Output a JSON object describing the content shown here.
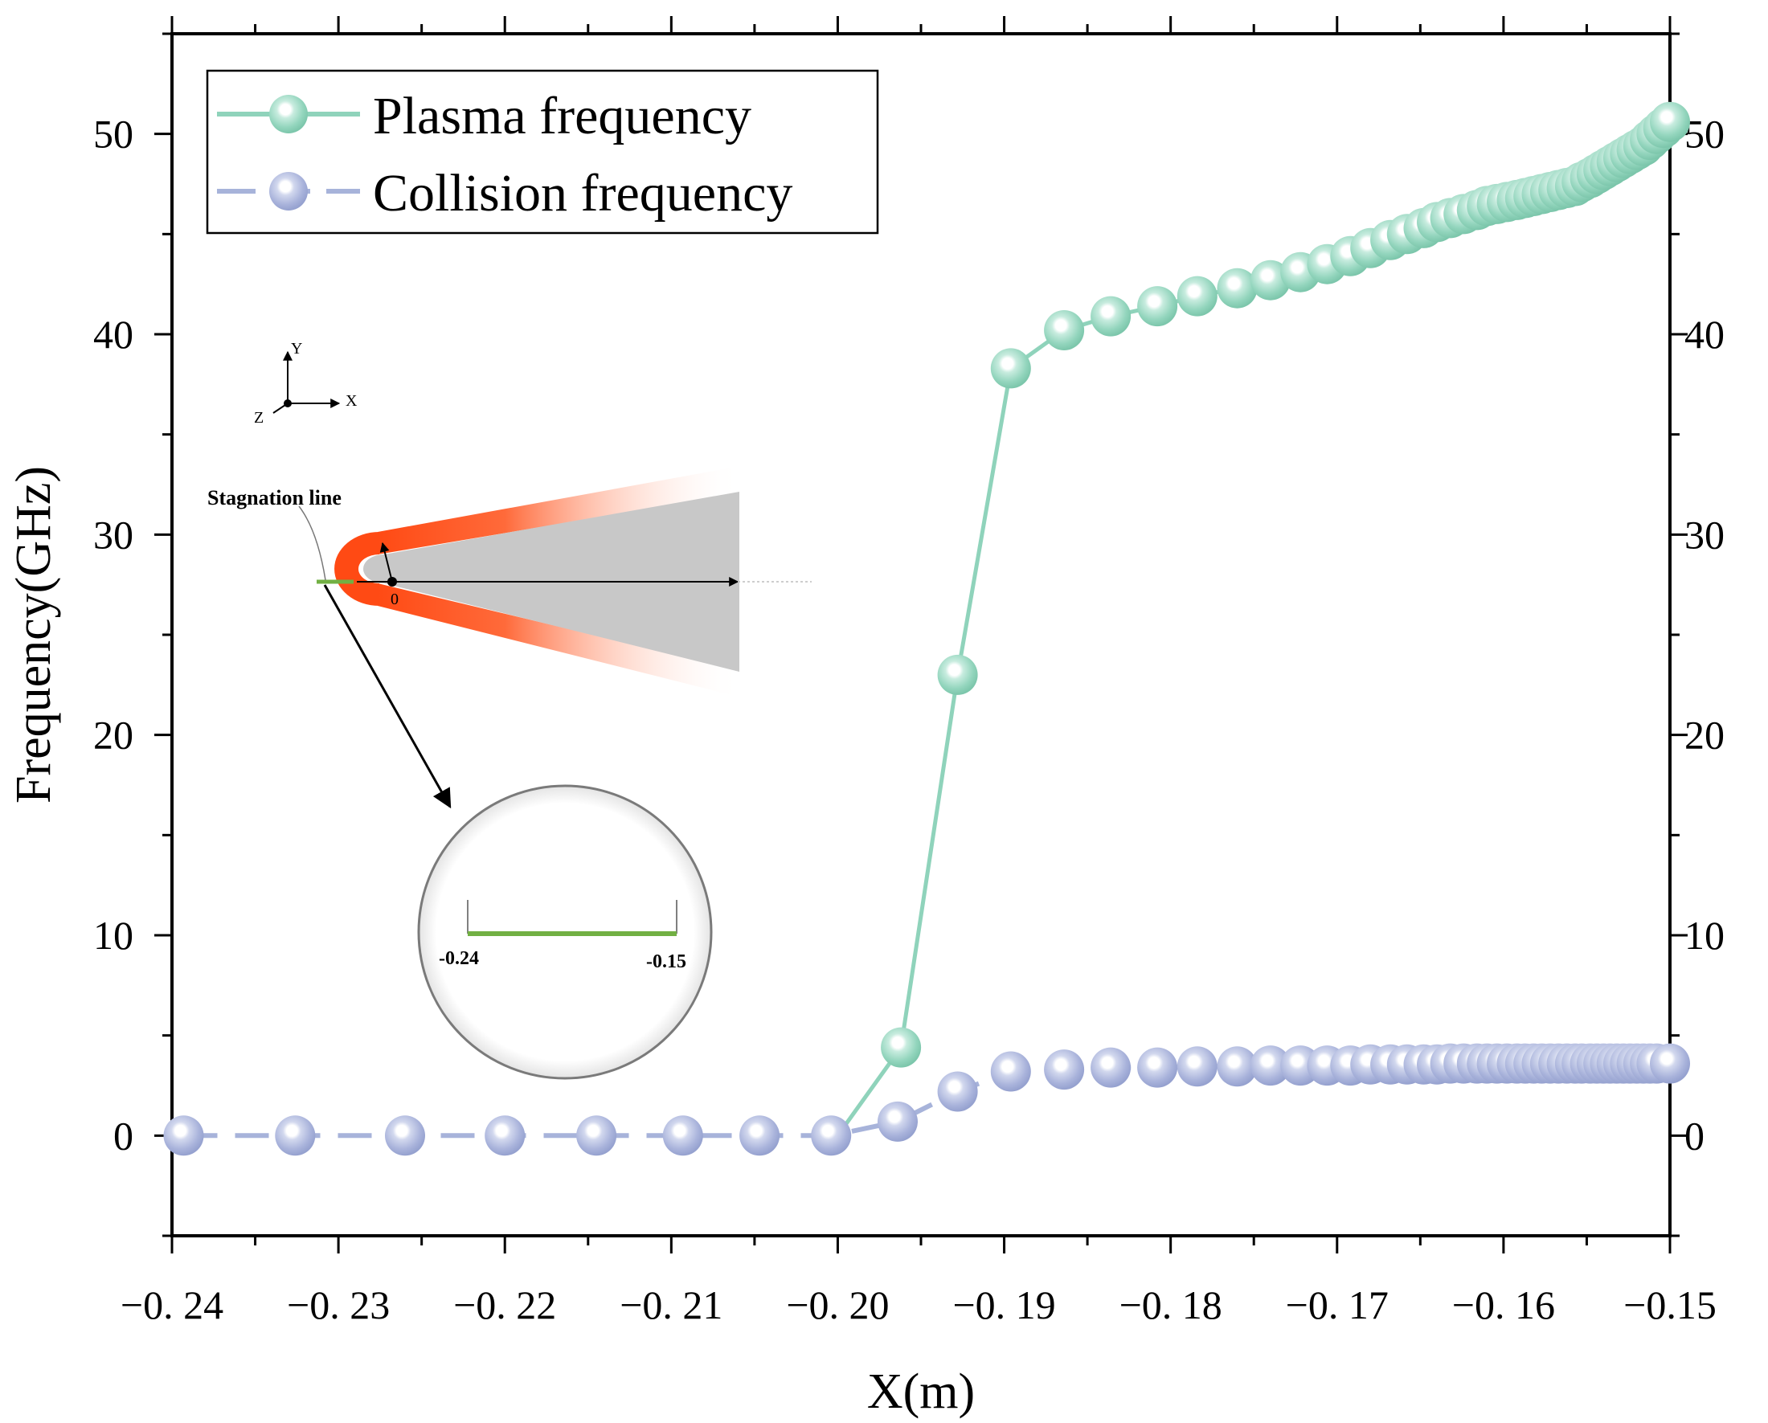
{
  "chart_data": {
    "type": "line",
    "title": "",
    "xlabel": "X(m)",
    "ylabel": "Frequency(GHz)",
    "xlim": [
      -0.24,
      -0.15
    ],
    "ylim": [
      -5,
      55
    ],
    "x_ticks": [
      -0.24,
      -0.23,
      -0.22,
      -0.21,
      -0.2,
      -0.19,
      -0.18,
      -0.17,
      -0.16,
      -0.15
    ],
    "x_tick_labels": [
      "−0. 24",
      "−0. 23",
      "−0. 22",
      "−0. 21",
      "−0. 20",
      "−0. 19",
      "−0. 18",
      "−0. 17",
      "−0. 16",
      "−0.15"
    ],
    "y_ticks": [
      0,
      10,
      20,
      30,
      40,
      50
    ],
    "y_tick_labels": [
      "0",
      "10",
      "20",
      "30",
      "40",
      "50"
    ],
    "grid": false,
    "legend_position": "top-left",
    "series": [
      {
        "name": "Plasma frequency",
        "color": "#8fd3bb",
        "x": [
          -0.2,
          -0.1962,
          -0.1928,
          -0.1896,
          -0.1864,
          -0.1836,
          -0.1808,
          -0.1784,
          -0.176,
          -0.174,
          -0.1722,
          -0.1706,
          -0.1692,
          -0.168,
          -0.1668,
          -0.1658,
          -0.1648,
          -0.164,
          -0.1632,
          -0.1624,
          -0.1616,
          -0.161,
          -0.1604,
          -0.1598,
          -0.1592,
          -0.1587,
          -0.1582,
          -0.1577,
          -0.1572,
          -0.1567,
          -0.1562,
          -0.1557,
          -0.1553,
          -0.1548,
          -0.1544,
          -0.154,
          -0.1536,
          -0.1532,
          -0.1528,
          -0.1524,
          -0.152,
          -0.1516,
          -0.1512,
          -0.1508,
          -0.1504,
          -0.15
        ],
        "values": [
          0.0,
          4.4,
          23.0,
          38.3,
          40.2,
          40.9,
          41.4,
          41.9,
          42.3,
          42.7,
          43.1,
          43.5,
          43.9,
          44.3,
          44.7,
          45.0,
          45.3,
          45.6,
          45.8,
          46.0,
          46.2,
          46.4,
          46.5,
          46.6,
          46.7,
          46.8,
          46.9,
          47.0,
          47.1,
          47.2,
          47.3,
          47.4,
          47.6,
          47.8,
          48.0,
          48.2,
          48.4,
          48.6,
          48.8,
          49.0,
          49.2,
          49.4,
          49.7,
          50.0,
          50.3,
          50.6
        ]
      },
      {
        "name": "Collision frequency",
        "color": "#a7b3da",
        "x": [
          -0.2393,
          -0.2326,
          -0.226,
          -0.22,
          -0.2145,
          -0.2093,
          -0.2047,
          -0.2004,
          -0.1964,
          -0.1928,
          -0.1896,
          -0.1864,
          -0.1836,
          -0.1808,
          -0.1784,
          -0.176,
          -0.174,
          -0.1722,
          -0.1706,
          -0.1692,
          -0.168,
          -0.1668,
          -0.1658,
          -0.1648,
          -0.164,
          -0.1632,
          -0.1624,
          -0.1616,
          -0.161,
          -0.1604,
          -0.1598,
          -0.1592,
          -0.1587,
          -0.1582,
          -0.1577,
          -0.1572,
          -0.1567,
          -0.1562,
          -0.1557,
          -0.1553,
          -0.1548,
          -0.1544,
          -0.154,
          -0.1536,
          -0.1532,
          -0.1528,
          -0.1524,
          -0.152,
          -0.1516,
          -0.1512,
          -0.1508,
          -0.15
        ],
        "values": [
          0.0,
          0.0,
          0.0,
          0.0,
          0.0,
          0.0,
          0.0,
          0.0,
          0.7,
          2.2,
          3.2,
          3.3,
          3.4,
          3.4,
          3.45,
          3.45,
          3.5,
          3.5,
          3.5,
          3.5,
          3.55,
          3.55,
          3.55,
          3.55,
          3.55,
          3.6,
          3.6,
          3.6,
          3.6,
          3.6,
          3.6,
          3.6,
          3.6,
          3.6,
          3.6,
          3.6,
          3.6,
          3.6,
          3.6,
          3.6,
          3.6,
          3.6,
          3.6,
          3.6,
          3.6,
          3.6,
          3.6,
          3.6,
          3.6,
          3.6,
          3.6,
          3.6
        ]
      }
    ],
    "inset": {
      "axis_labels": [
        "Y",
        "X",
        "Z"
      ],
      "stagnation_label": "Stagnation line",
      "origin_label": "0",
      "zoom_labels": [
        "-0.24",
        "-0.15"
      ]
    }
  }
}
